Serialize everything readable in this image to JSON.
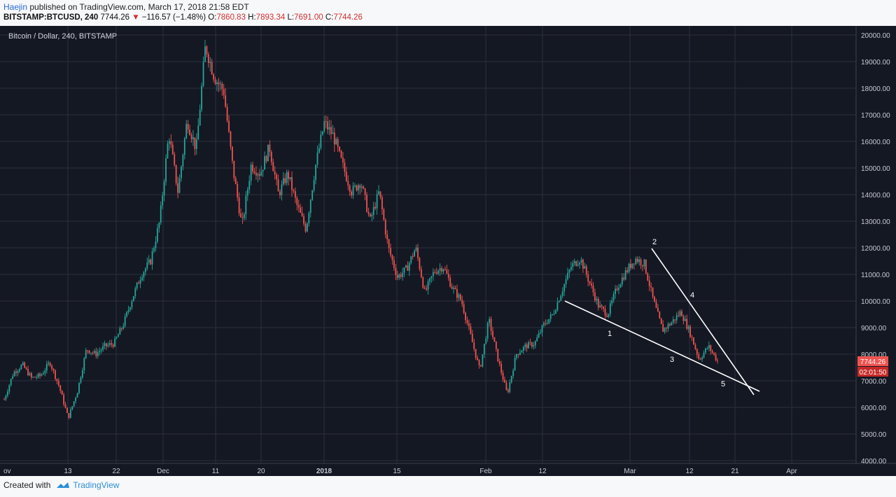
{
  "header": {
    "author": "Haejin",
    "published_text": "published on TradingView.com, March 17, 2018 21:58 EDT"
  },
  "symbol_bar": {
    "symbol": "BITSTAMP:BTCUSD, 240",
    "last": "7744.26",
    "change": "−116.57 (−1.48%)",
    "o_label": "O:",
    "o_value": "7860.83",
    "h_label": "H:",
    "h_value": "7893.34",
    "l_label": "L:",
    "l_value": "7691.00",
    "c_label": "C:",
    "c_value": "7744.26"
  },
  "footer": {
    "created_with": "Created with",
    "brand": "TradingView"
  },
  "chart_data": {
    "type": "candlestick",
    "title": "Bitcoin / Dollar, 240, BITSTAMP",
    "price_axis": {
      "ylim": [
        4000,
        20000
      ],
      "ticks": [
        "20000.00",
        "19000.00",
        "18000.00",
        "17000.00",
        "16000.00",
        "15000.00",
        "14000.00",
        "13000.00",
        "12000.00",
        "11000.00",
        "10000.00",
        "9000.00",
        "8000.00",
        "7000.00",
        "6000.00",
        "5000.00",
        "4000.00"
      ]
    },
    "time_axis": {
      "ticks": [
        "ov",
        "13",
        "22",
        "Dec",
        "11",
        "20",
        "2018",
        "15",
        "Feb",
        "12",
        "Mar",
        "12",
        "21",
        "Apr"
      ]
    },
    "price_label": "7744.26",
    "countdown_label": "02:01:50",
    "series": [
      {
        "values": [
          6300,
          7300,
          7600,
          7100,
          7200,
          7700,
          6800,
          5600,
          6600,
          8200,
          8000,
          8300,
          8400,
          9100,
          10100,
          11000,
          11500,
          13000,
          16300,
          14100,
          16800,
          15700,
          19600,
          18400,
          17900,
          15000,
          12800,
          15100,
          14800,
          15800,
          14000,
          14800,
          13600,
          12700,
          15000,
          16700,
          16200,
          15100,
          14100,
          14500,
          13000,
          14100,
          12000,
          10900,
          11200,
          12000,
          10300,
          11100,
          11300,
          10500,
          10000,
          8700,
          7400,
          9300,
          7800,
          6500,
          8000,
          8300,
          8400,
          9100,
          9500,
          10400,
          11300,
          11600,
          10700,
          9800,
          9500,
          10500,
          11100,
          11600,
          11400,
          10000,
          8900,
          9200,
          9600,
          8800,
          7800,
          8300,
          7750
        ]
      }
    ],
    "annotations": [
      "1",
      "2",
      "3",
      "4",
      "5"
    ],
    "colors": {
      "background": "#141823",
      "up": "#26a69a",
      "down": "#ef5350",
      "grid": "#2a2f3c",
      "price_tag": "#ef5350",
      "lines": "#ffffff"
    }
  }
}
